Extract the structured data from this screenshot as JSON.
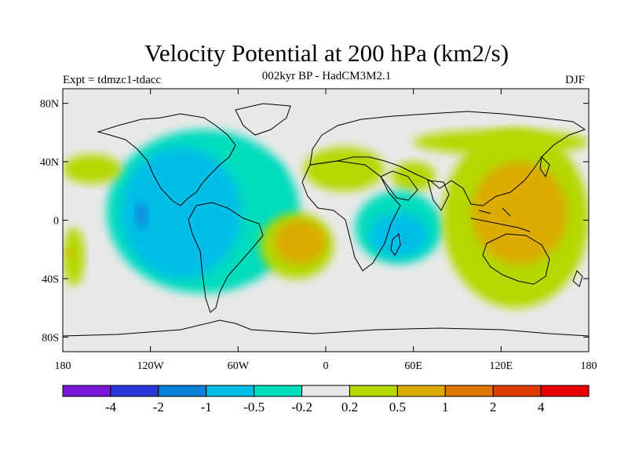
{
  "title": "Velocity Potential at 200 hPa (km2/s)",
  "subtitle": "002kyr BP - HadCM3M2.1",
  "experiment": "Expt = tdmzc1-tdacc",
  "season": "DJF",
  "colors": {
    "ocean_background": "#e8e8e8",
    "coastline": "#000000"
  },
  "map": {
    "projection": "cylindrical-equidistant",
    "lon_range": [
      -180,
      180
    ],
    "lat_range": [
      -90,
      90
    ],
    "x_ticks": [
      {
        "lon": -180,
        "label": "180"
      },
      {
        "lon": -120,
        "label": "120W"
      },
      {
        "lon": -60,
        "label": "60W"
      },
      {
        "lon": 0,
        "label": "0"
      },
      {
        "lon": 60,
        "label": "60E"
      },
      {
        "lon": 120,
        "label": "120E"
      },
      {
        "lon": 180,
        "label": "180"
      }
    ],
    "y_ticks": [
      {
        "lat": 80,
        "label": "80N"
      },
      {
        "lat": 40,
        "label": "40N"
      },
      {
        "lat": 0,
        "label": "0"
      },
      {
        "lat": -40,
        "label": "40S"
      },
      {
        "lat": -80,
        "label": "80S"
      }
    ]
  },
  "colorbar": {
    "colors": [
      "#7a16d8",
      "#2a36d8",
      "#0a82d8",
      "#00bee8",
      "#00dcbe",
      "#e8e8e8",
      "#b4d800",
      "#dcaa00",
      "#dc7800",
      "#dc3c00",
      "#e80000"
    ],
    "labels": [
      "-4",
      "-2",
      "-1",
      "-0.5",
      "-0.2",
      "0.2",
      "0.5",
      "1",
      "2",
      "4"
    ]
  },
  "field_regions": [
    {
      "name": "cyan-negative-central-pacific-americas",
      "level_index": 4,
      "lon": [
        -150,
        -18
      ],
      "lat": [
        -50,
        62
      ]
    },
    {
      "name": "blue-negative-east-pacific",
      "level_index": 3,
      "lon": [
        -140,
        -58
      ],
      "lat": [
        -40,
        50
      ]
    },
    {
      "name": "deep-negative-spot-east-pacific",
      "level_index": 2,
      "lon": [
        -130,
        -122
      ],
      "lat": [
        -5,
        12
      ]
    },
    {
      "name": "green-positive-north-pacific",
      "level_index": 6,
      "lon": [
        -180,
        -140
      ],
      "lat": [
        25,
        45
      ]
    },
    {
      "name": "green-positive-south-pacific-edge",
      "level_index": 6,
      "lon": [
        -180,
        -165
      ],
      "lat": [
        -45,
        -5
      ]
    },
    {
      "name": "orange-positive-south-pacific-spot",
      "level_index": 7,
      "lon": [
        -180,
        -172
      ],
      "lat": [
        -25,
        -20
      ]
    },
    {
      "name": "cyan-negative-west-atlantic-mid",
      "level_index": 4,
      "lon": [
        -50,
        -30
      ],
      "lat": [
        20,
        40
      ]
    },
    {
      "name": "green-positive-south-atlantic",
      "level_index": 6,
      "lon": [
        -45,
        5
      ],
      "lat": [
        -40,
        5
      ]
    },
    {
      "name": "orange-positive-south-atlantic",
      "level_index": 7,
      "lon": [
        -35,
        0
      ],
      "lat": [
        -30,
        0
      ]
    },
    {
      "name": "green-positive-north-africa-europe",
      "level_index": 6,
      "lon": [
        -15,
        40
      ],
      "lat": [
        20,
        50
      ]
    },
    {
      "name": "green-positive-arabia",
      "level_index": 6,
      "lon": [
        45,
        75
      ],
      "lat": [
        20,
        40
      ]
    },
    {
      "name": "cyan-negative-east-africa-indian-ocean",
      "level_index": 4,
      "lon": [
        20,
        80
      ],
      "lat": [
        -30,
        20
      ]
    },
    {
      "name": "blue-negative-east-africa",
      "level_index": 3,
      "lon": [
        30,
        70
      ],
      "lat": [
        -25,
        5
      ]
    },
    {
      "name": "green-positive-east-asia-pacific",
      "level_index": 6,
      "lon": [
        80,
        180
      ],
      "lat": [
        -60,
        62
      ]
    },
    {
      "name": "orange-positive-maritime-continent",
      "level_index": 7,
      "lon": [
        100,
        165
      ],
      "lat": [
        -30,
        40
      ]
    },
    {
      "name": "green-positive-north-atlantic-arctic",
      "level_index": 6,
      "lon": [
        60,
        180
      ],
      "lat": [
        45,
        62
      ]
    }
  ]
}
